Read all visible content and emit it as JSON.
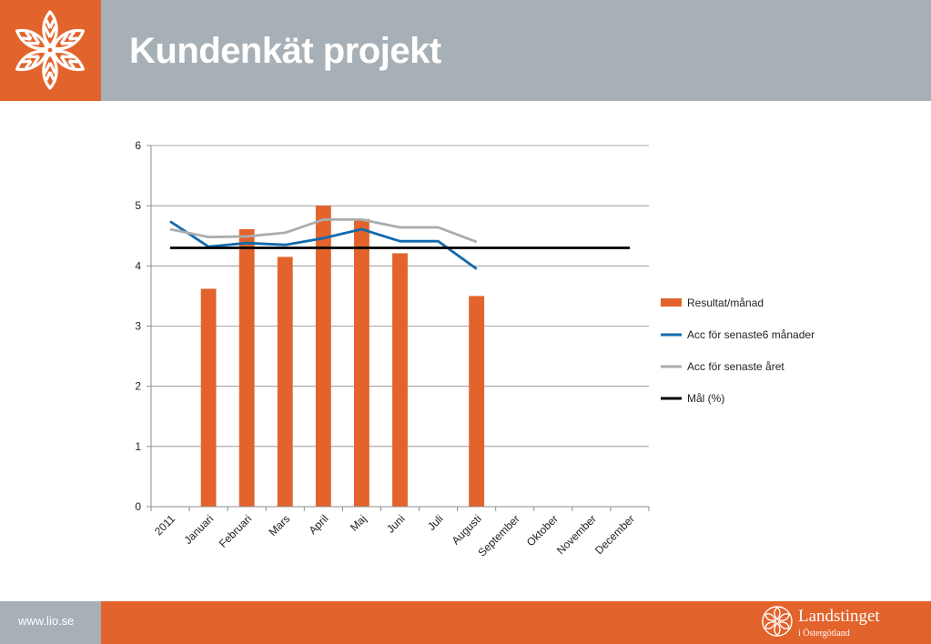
{
  "header": {
    "title": "Kundenkät projekt",
    "bg_color": "#a7b0b6",
    "accent_color": "#e2632b",
    "logo_icon": "snowflake-flower-icon"
  },
  "chart_data": {
    "type": "bar",
    "categories": [
      "2011",
      "Januari",
      "Februari",
      "Mars",
      "April",
      "Maj",
      "Juni",
      "Juli",
      "Augusti",
      "September",
      "Oktober",
      "November",
      "December"
    ],
    "ylim": [
      0,
      6
    ],
    "yticks": [
      "0",
      "1",
      "2",
      "3",
      "4",
      "5",
      "6"
    ],
    "grid": true,
    "legend_position": "right",
    "series": [
      {
        "name": "Resultat/månad",
        "type": "bar",
        "color": "#e2632b",
        "values": [
          null,
          3.62,
          4.61,
          4.15,
          5.0,
          4.78,
          4.21,
          null,
          3.5,
          null,
          null,
          null,
          null
        ]
      },
      {
        "name": "Acc för senaste6 månader",
        "type": "line",
        "color": "#0f6aad",
        "values": [
          4.74,
          4.32,
          4.38,
          4.35,
          4.46,
          4.61,
          4.41,
          4.41,
          3.95,
          null,
          null,
          null,
          null
        ]
      },
      {
        "name": "Acc för senaste året",
        "type": "line",
        "color": "#a9adb0",
        "values": [
          4.61,
          4.48,
          4.49,
          4.55,
          4.77,
          4.77,
          4.64,
          4.64,
          4.4,
          null,
          null,
          null,
          null
        ]
      },
      {
        "name": "Mål (%)",
        "type": "line",
        "color": "#000000",
        "values": [
          4.3,
          4.3,
          4.3,
          4.3,
          4.3,
          4.3,
          4.3,
          4.3,
          4.3,
          4.3,
          4.3,
          4.3,
          4.3
        ]
      }
    ]
  },
  "footer": {
    "url": "www.lio.se",
    "brand_name": "Landstinget",
    "brand_sub": "i Östergötland",
    "brand_icon": "landstinget-logo-icon"
  }
}
